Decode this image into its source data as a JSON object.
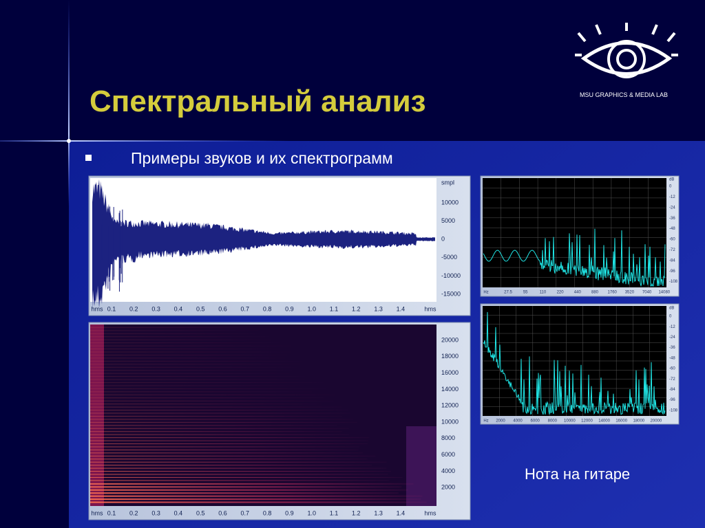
{
  "header": {
    "title": "Спектральный анализ",
    "logo_text": "MSU GRAPHICS & MEDIA LAB"
  },
  "bullet": "Примеры звуков и их спектрограмм",
  "caption": "Нота на гитаре",
  "waveform": {
    "y_ticks": [
      "smpl",
      "10000",
      "5000",
      "0",
      "-5000",
      "-10000",
      "-15000"
    ],
    "x_ticks": [
      "hms",
      "0.1",
      "0.2",
      "0.3",
      "0.4",
      "0.5",
      "0.6",
      "0.7",
      "0.8",
      "0.9",
      "1.0",
      "1.1",
      "1.2",
      "1.3",
      "1.4",
      "hms"
    ]
  },
  "spectrogram": {
    "y_ticks": [
      "20000",
      "18000",
      "16000",
      "14000",
      "12000",
      "10000",
      "8000",
      "6000",
      "4000",
      "2000"
    ],
    "x_ticks": [
      "hms",
      "0.1",
      "0.2",
      "0.3",
      "0.4",
      "0.5",
      "0.6",
      "0.7",
      "0.8",
      "0.9",
      "1.0",
      "1.1",
      "1.2",
      "1.3",
      "1.4",
      "hms"
    ]
  },
  "spectrum_log": {
    "y_ticks": [
      "dB",
      "0",
      "-12",
      "-24",
      "-36",
      "-48",
      "-60",
      "-72",
      "-84",
      "-96",
      "-108"
    ],
    "x_ticks": [
      "Hz",
      "27.5",
      "55",
      "110",
      "220",
      "440",
      "880",
      "1760",
      "3520",
      "7040",
      "14080"
    ]
  },
  "spectrum_linear": {
    "y_ticks": [
      "dB",
      "0",
      "-12",
      "-24",
      "-36",
      "-48",
      "-60",
      "-72",
      "-84",
      "-96",
      "-108"
    ],
    "x_ticks": [
      "Hz",
      "2000",
      "4000",
      "6000",
      "8000",
      "10000",
      "12000",
      "14000",
      "16000",
      "18000",
      "20000"
    ]
  }
}
